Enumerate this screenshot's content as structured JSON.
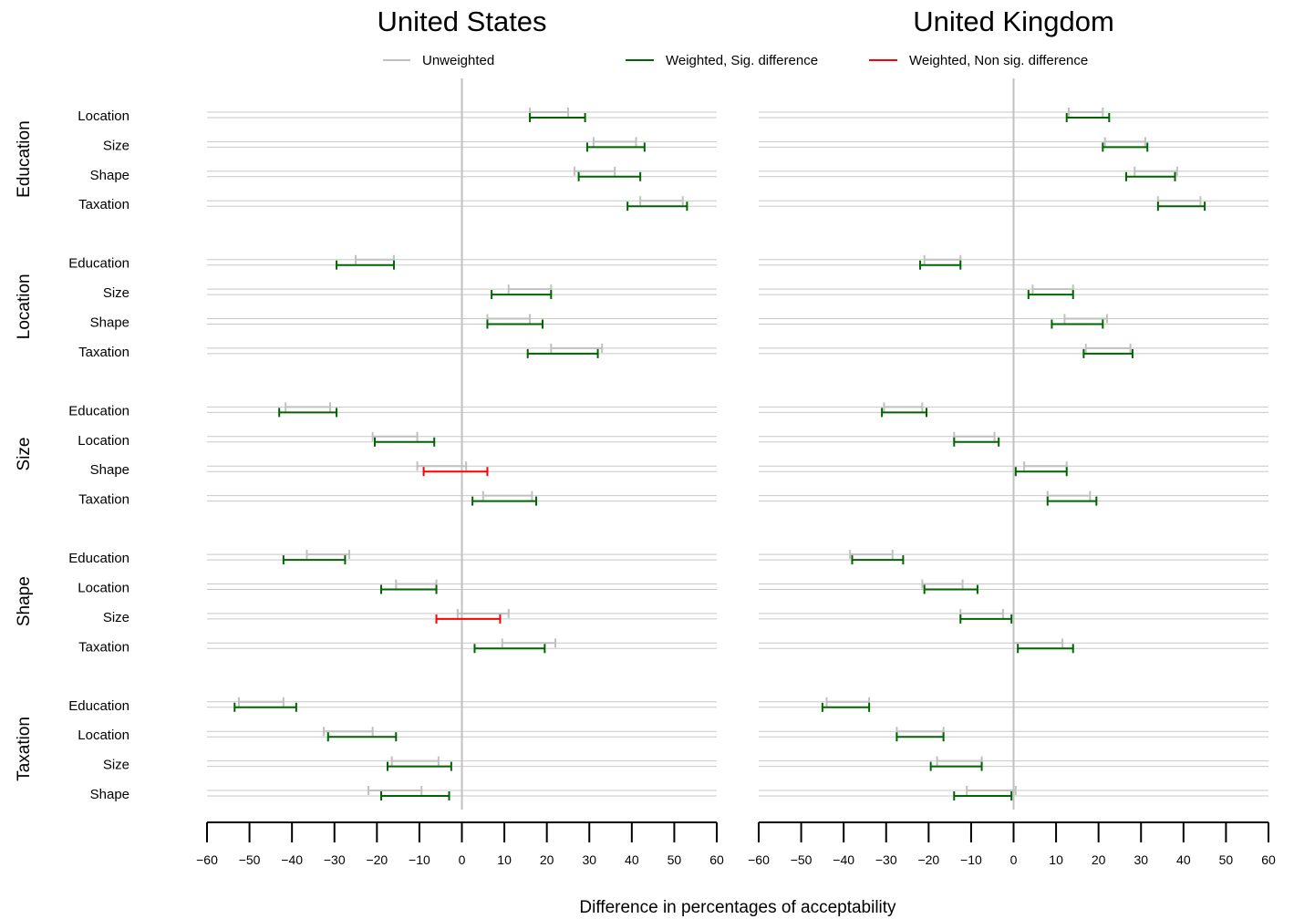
{
  "chart_data": {
    "type": "interval",
    "xlabel": "Difference in percentages of acceptability",
    "xlim": [
      -60,
      60
    ],
    "xticks": [
      -60,
      -50,
      -40,
      -30,
      -20,
      -10,
      0,
      10,
      20,
      30,
      40,
      50,
      60
    ],
    "xtick_labels": [
      "−60",
      "−50",
      "−40",
      "−30",
      "−20",
      "−10",
      "0",
      "10",
      "20",
      "30",
      "40",
      "50",
      "60"
    ],
    "legend": {
      "placement": "top",
      "items": [
        {
          "label": "Unweighted",
          "color": "#c0c0c0"
        },
        {
          "label": "Weighted, Sig. difference",
          "color": "#006400"
        },
        {
          "label": "Weighted, Non sig. difference",
          "color": "#ff0000"
        }
      ]
    },
    "colors": {
      "unweighted": "#c0c0c0",
      "sig": "#006400",
      "nonsig": "#ff0000",
      "gridline": "#c8c8c8",
      "zero_line": "#c0c0c0"
    },
    "groups": [
      {
        "name": "Education",
        "rows": [
          "Location",
          "Size",
          "Shape",
          "Taxation"
        ]
      },
      {
        "name": "Location",
        "rows": [
          "Education",
          "Size",
          "Shape",
          "Taxation"
        ]
      },
      {
        "name": "Size",
        "rows": [
          "Education",
          "Location",
          "Shape",
          "Taxation"
        ]
      },
      {
        "name": "Shape",
        "rows": [
          "Education",
          "Location",
          "Size",
          "Taxation"
        ]
      },
      {
        "name": "Taxation",
        "rows": [
          "Education",
          "Location",
          "Size",
          "Shape"
        ]
      }
    ],
    "panels": [
      {
        "title": "United States",
        "groups": [
          {
            "name": "Education",
            "rows": [
              {
                "label": "Location",
                "unweighted": [
                  16,
                  25
                ],
                "weighted": [
                  16,
                  29
                ],
                "sig": true
              },
              {
                "label": "Size",
                "unweighted": [
                  31,
                  41
                ],
                "weighted": [
                  29.5,
                  43
                ],
                "sig": true
              },
              {
                "label": "Shape",
                "unweighted": [
                  26.5,
                  36
                ],
                "weighted": [
                  27.5,
                  42
                ],
                "sig": true
              },
              {
                "label": "Taxation",
                "unweighted": [
                  42,
                  52
                ],
                "weighted": [
                  39,
                  53
                ],
                "sig": true
              }
            ]
          },
          {
            "name": "Location",
            "rows": [
              {
                "label": "Education",
                "unweighted": [
                  -25,
                  -16
                ],
                "weighted": [
                  -29.5,
                  -16
                ],
                "sig": true
              },
              {
                "label": "Size",
                "unweighted": [
                  11,
                  21
                ],
                "weighted": [
                  7,
                  21
                ],
                "sig": true
              },
              {
                "label": "Shape",
                "unweighted": [
                  6,
                  16
                ],
                "weighted": [
                  6,
                  19
                ],
                "sig": true
              },
              {
                "label": "Taxation",
                "unweighted": [
                  21,
                  33
                ],
                "weighted": [
                  15.5,
                  32
                ],
                "sig": true
              }
            ]
          },
          {
            "name": "Size",
            "rows": [
              {
                "label": "Education",
                "unweighted": [
                  -41.5,
                  -31
                ],
                "weighted": [
                  -43,
                  -29.5
                ],
                "sig": true
              },
              {
                "label": "Location",
                "unweighted": [
                  -21,
                  -10.5
                ],
                "weighted": [
                  -20.5,
                  -6.5
                ],
                "sig": true
              },
              {
                "label": "Shape",
                "unweighted": [
                  -10.5,
                  1
                ],
                "weighted": [
                  -9,
                  6
                ],
                "sig": false
              },
              {
                "label": "Taxation",
                "unweighted": [
                  5,
                  16.5
                ],
                "weighted": [
                  2.5,
                  17.5
                ],
                "sig": true
              }
            ]
          },
          {
            "name": "Shape",
            "rows": [
              {
                "label": "Education",
                "unweighted": [
                  -36.5,
                  -26.5
                ],
                "weighted": [
                  -42,
                  -27.5
                ],
                "sig": true
              },
              {
                "label": "Location",
                "unweighted": [
                  -15.5,
                  -6
                ],
                "weighted": [
                  -19,
                  -6
                ],
                "sig": true
              },
              {
                "label": "Size",
                "unweighted": [
                  -1,
                  11
                ],
                "weighted": [
                  -6,
                  9
                ],
                "sig": false
              },
              {
                "label": "Taxation",
                "unweighted": [
                  9.5,
                  22
                ],
                "weighted": [
                  3,
                  19.5
                ],
                "sig": true
              }
            ]
          },
          {
            "name": "Taxation",
            "rows": [
              {
                "label": "Education",
                "unweighted": [
                  -52.5,
                  -42
                ],
                "weighted": [
                  -53.5,
                  -39
                ],
                "sig": true
              },
              {
                "label": "Location",
                "unweighted": [
                  -32.5,
                  -21
                ],
                "weighted": [
                  -31.5,
                  -15.5
                ],
                "sig": true
              },
              {
                "label": "Size",
                "unweighted": [
                  -16.5,
                  -5.5
                ],
                "weighted": [
                  -17.5,
                  -2.5
                ],
                "sig": true
              },
              {
                "label": "Shape",
                "unweighted": [
                  -22,
                  -9.5
                ],
                "weighted": [
                  -19,
                  -3
                ],
                "sig": true
              }
            ]
          }
        ]
      },
      {
        "title": "United Kingdom",
        "groups": [
          {
            "name": "Education",
            "rows": [
              {
                "label": "Location",
                "unweighted": [
                  13,
                  21
                ],
                "weighted": [
                  12.5,
                  22.5
                ],
                "sig": true
              },
              {
                "label": "Size",
                "unweighted": [
                  21.5,
                  31
                ],
                "weighted": [
                  21,
                  31.5
                ],
                "sig": true
              },
              {
                "label": "Shape",
                "unweighted": [
                  28.5,
                  38.5
                ],
                "weighted": [
                  26.5,
                  38
                ],
                "sig": true
              },
              {
                "label": "Taxation",
                "unweighted": [
                  34,
                  44
                ],
                "weighted": [
                  34,
                  45
                ],
                "sig": true
              }
            ]
          },
          {
            "name": "Location",
            "rows": [
              {
                "label": "Education",
                "unweighted": [
                  -21,
                  -12.5
                ],
                "weighted": [
                  -22,
                  -12.5
                ],
                "sig": true
              },
              {
                "label": "Size",
                "unweighted": [
                  4.5,
                  14
                ],
                "weighted": [
                  3.5,
                  14
                ],
                "sig": true
              },
              {
                "label": "Shape",
                "unweighted": [
                  12,
                  22
                ],
                "weighted": [
                  9,
                  21
                ],
                "sig": true
              },
              {
                "label": "Taxation",
                "unweighted": [
                  17,
                  27.5
                ],
                "weighted": [
                  16.5,
                  28
                ],
                "sig": true
              }
            ]
          },
          {
            "name": "Size",
            "rows": [
              {
                "label": "Education",
                "unweighted": [
                  -30.5,
                  -21.5
                ],
                "weighted": [
                  -31,
                  -20.5
                ],
                "sig": true
              },
              {
                "label": "Location",
                "unweighted": [
                  -14,
                  -4.5
                ],
                "weighted": [
                  -14,
                  -3.5
                ],
                "sig": true
              },
              {
                "label": "Shape",
                "unweighted": [
                  2.5,
                  12.5
                ],
                "weighted": [
                  0.5,
                  12.5
                ],
                "sig": true
              },
              {
                "label": "Taxation",
                "unweighted": [
                  8,
                  18
                ],
                "weighted": [
                  8,
                  19.5
                ],
                "sig": true
              }
            ]
          },
          {
            "name": "Shape",
            "rows": [
              {
                "label": "Education",
                "unweighted": [
                  -38.5,
                  -28.5
                ],
                "weighted": [
                  -38,
                  -26
                ],
                "sig": true
              },
              {
                "label": "Location",
                "unweighted": [
                  -21.5,
                  -12
                ],
                "weighted": [
                  -21,
                  -8.5
                ],
                "sig": true
              },
              {
                "label": "Size",
                "unweighted": [
                  -12.5,
                  -2.5
                ],
                "weighted": [
                  -12.5,
                  -0.5
                ],
                "sig": true
              },
              {
                "label": "Taxation",
                "unweighted": [
                  0,
                  11.5
                ],
                "weighted": [
                  1,
                  14
                ],
                "sig": true
              }
            ]
          },
          {
            "name": "Taxation",
            "rows": [
              {
                "label": "Education",
                "unweighted": [
                  -44,
                  -34
                ],
                "weighted": [
                  -45,
                  -34
                ],
                "sig": true
              },
              {
                "label": "Location",
                "unweighted": [
                  -27.5,
                  -16.5
                ],
                "weighted": [
                  -27.5,
                  -16.5
                ],
                "sig": true
              },
              {
                "label": "Size",
                "unweighted": [
                  -18,
                  -7.5
                ],
                "weighted": [
                  -19.5,
                  -7.5
                ],
                "sig": true
              },
              {
                "label": "Shape",
                "unweighted": [
                  -11,
                  0.5
                ],
                "weighted": [
                  -14,
                  -0.5
                ],
                "sig": true
              }
            ]
          }
        ]
      }
    ]
  }
}
